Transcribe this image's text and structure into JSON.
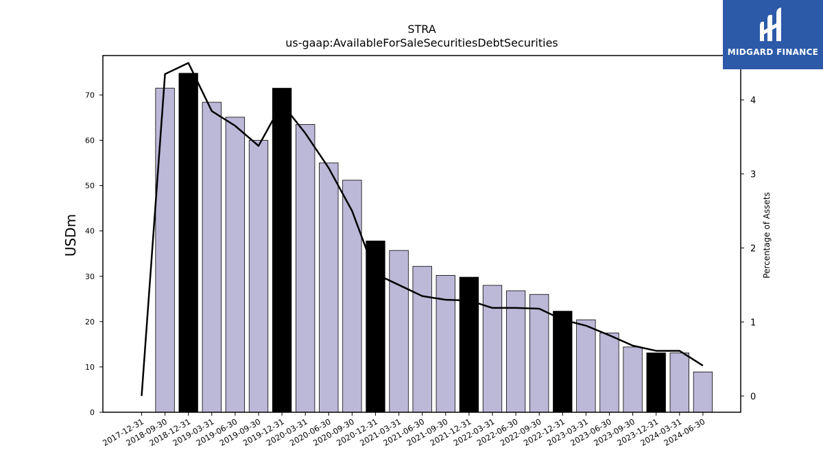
{
  "chart_data": {
    "type": "bar",
    "title": "STRA",
    "subtitle": "us-gaap:AvailableForSaleSecuritiesDebtSecurities",
    "ylabel": "USDm",
    "y2label": "Percentage of Assets",
    "categories": [
      "2017-12-31",
      "2018-09-30",
      "2018-12-31",
      "2019-03-31",
      "2019-06-30",
      "2019-09-30",
      "2019-12-31",
      "2020-03-31",
      "2020-06-30",
      "2020-09-30",
      "2020-12-31",
      "2021-03-31",
      "2021-06-30",
      "2021-09-30",
      "2021-12-31",
      "2022-03-31",
      "2022-06-30",
      "2022-09-30",
      "2022-12-31",
      "2023-03-31",
      "2023-06-30",
      "2023-09-30",
      "2023-12-31",
      "2024-03-31",
      "2024-06-30"
    ],
    "series": [
      {
        "axis": "left",
        "kind": "bar",
        "values": [
          null,
          71.5,
          74.8,
          68.4,
          65.1,
          60.0,
          71.5,
          63.5,
          55.0,
          51.2,
          37.8,
          35.7,
          32.2,
          30.2,
          29.8,
          28.0,
          26.8,
          26.0,
          22.3,
          20.4,
          17.5,
          14.4,
          13.1,
          13.1,
          8.9
        ],
        "highlight_year_end": true
      },
      {
        "axis": "right",
        "kind": "line",
        "values": [
          0.0,
          4.35,
          4.5,
          3.85,
          3.65,
          3.38,
          3.95,
          3.55,
          3.08,
          2.5,
          1.65,
          1.5,
          1.35,
          1.3,
          1.29,
          1.19,
          1.19,
          1.18,
          1.03,
          0.95,
          0.82,
          0.68,
          0.61,
          0.61,
          0.41
        ]
      }
    ],
    "ylim": [
      0,
      78.7
    ],
    "yticks": [
      0,
      10,
      20,
      30,
      40,
      50,
      60,
      70
    ],
    "y2lim": [
      -0.22,
      4.6
    ],
    "y2ticks": [
      0,
      1,
      2,
      3,
      4
    ],
    "colors": {
      "bar": "#bcb8d8",
      "bar_highlight": "#000000",
      "line": "#000000"
    },
    "grid": false,
    "legend": "none"
  },
  "logo": {
    "text": "MIDGARD FINANCE",
    "bg": "#2c5aa8"
  }
}
